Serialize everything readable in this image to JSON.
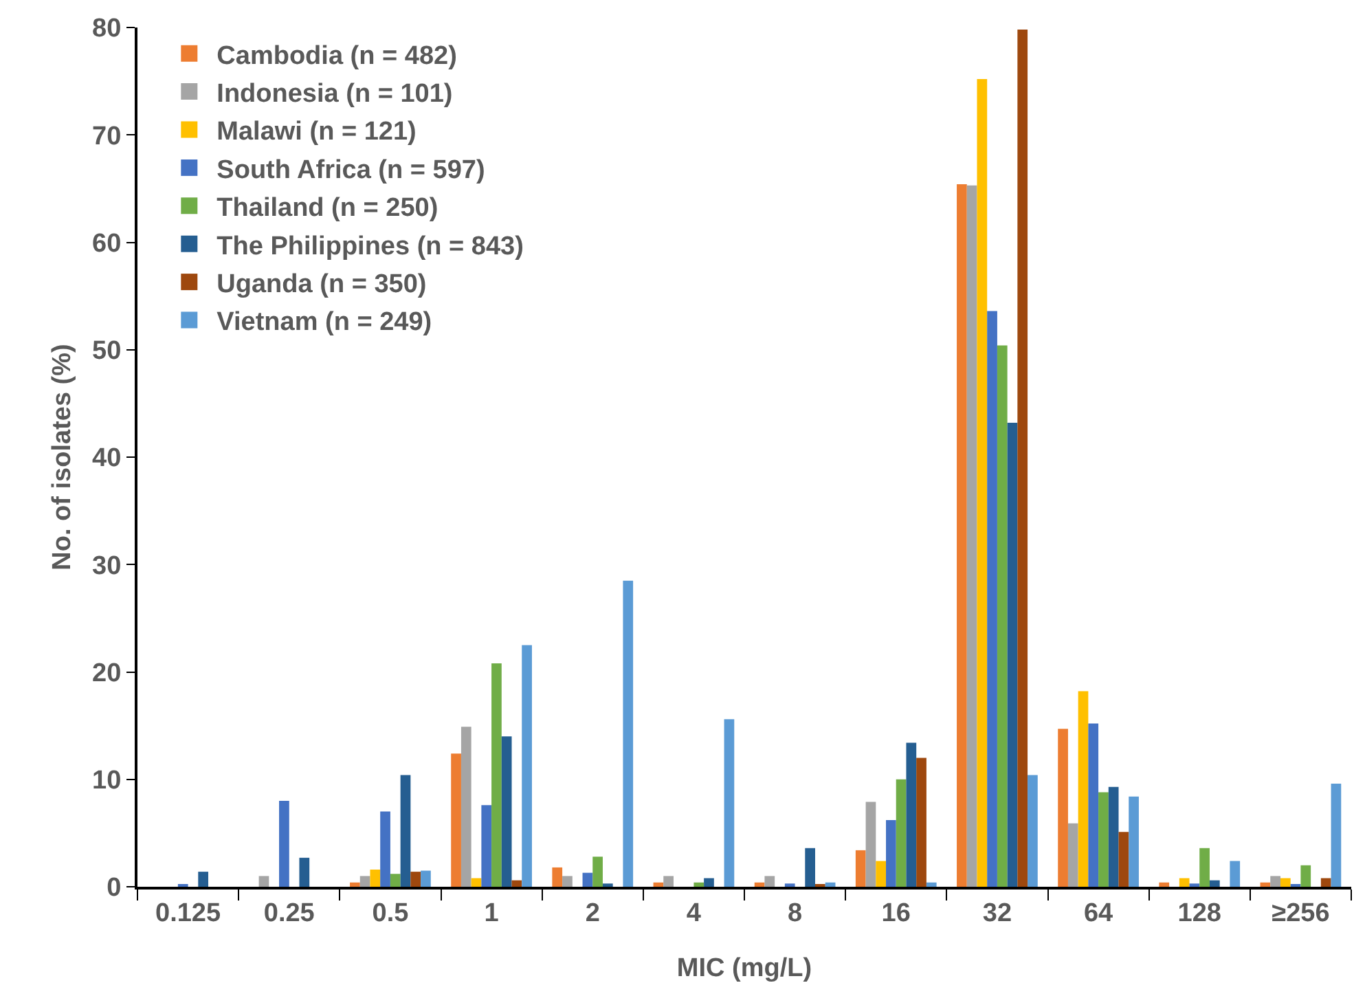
{
  "chart_data": {
    "type": "bar",
    "xlabel": "MIC (mg/L)",
    "ylabel": "No. of isolates (%)",
    "categories": [
      "0.125",
      "0.25",
      "0.5",
      "1",
      "2",
      "4",
      "8",
      "16",
      "32",
      "64",
      "128",
      "≥256"
    ],
    "ylim": [
      0,
      80
    ],
    "yticks": [
      0,
      10,
      20,
      30,
      40,
      50,
      60,
      70,
      80
    ],
    "grid": false,
    "legend": "top left",
    "series": [
      {
        "name": "Cambodia (n = 482)",
        "color": "#ed7d31",
        "values": [
          0,
          0,
          0.4,
          12.4,
          1.8,
          0.4,
          0.4,
          3.4,
          65.4,
          14.7,
          0.4,
          0.4
        ]
      },
      {
        "name": "Indonesia (n = 101)",
        "color": "#a5a5a5",
        "values": [
          0,
          1.0,
          1.0,
          14.9,
          1.0,
          1.0,
          1.0,
          7.9,
          65.3,
          5.9,
          0,
          1.0
        ]
      },
      {
        "name": "Malawi (n = 121)",
        "color": "#ffc000",
        "values": [
          0,
          0,
          1.6,
          0.8,
          0,
          0,
          0,
          2.4,
          75.2,
          18.2,
          0.8,
          0.8
        ]
      },
      {
        "name": "South Africa (n = 597)",
        "color": "#4472c4",
        "values": [
          0.2,
          8.0,
          7.0,
          7.6,
          1.3,
          0,
          0.3,
          6.2,
          53.6,
          15.2,
          0.3,
          0.2
        ]
      },
      {
        "name": "Thailand (n = 250)",
        "color": "#70ad47",
        "values": [
          0,
          0,
          1.2,
          20.8,
          2.8,
          0.4,
          0,
          10.0,
          50.4,
          8.8,
          3.6,
          2.0
        ]
      },
      {
        "name": "The Philippines (n = 843)",
        "color": "#255e91",
        "values": [
          1.4,
          2.7,
          10.4,
          14.0,
          0.3,
          0.8,
          3.6,
          13.4,
          43.2,
          9.3,
          0.6,
          0
        ]
      },
      {
        "name": "Uganda (n = 350)",
        "color": "#9e480e",
        "values": [
          0,
          0,
          1.4,
          0.6,
          0,
          0,
          0.2,
          12.0,
          79.8,
          5.1,
          0,
          0.8
        ]
      },
      {
        "name": "Vietnam (n = 249)",
        "color": "#5b9bd5",
        "values": [
          0,
          0,
          1.5,
          22.5,
          28.5,
          15.6,
          0.4,
          0.4,
          10.4,
          8.4,
          2.4,
          9.6
        ]
      }
    ]
  }
}
